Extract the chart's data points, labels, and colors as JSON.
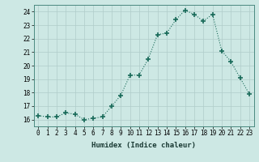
{
  "x": [
    0,
    1,
    2,
    3,
    4,
    5,
    6,
    7,
    8,
    9,
    10,
    11,
    12,
    13,
    14,
    15,
    16,
    17,
    18,
    19,
    20,
    21,
    22,
    23
  ],
  "y": [
    16.3,
    16.2,
    16.2,
    16.5,
    16.4,
    16.0,
    16.1,
    16.2,
    17.0,
    17.8,
    19.3,
    19.3,
    20.5,
    22.3,
    22.4,
    23.4,
    24.1,
    23.8,
    23.3,
    23.8,
    21.1,
    20.3,
    19.1,
    17.9
  ],
  "xlabel": "Humidex (Indice chaleur)",
  "ylim": [
    15.5,
    24.5
  ],
  "xlim": [
    -0.5,
    23.5
  ],
  "yticks": [
    16,
    17,
    18,
    19,
    20,
    21,
    22,
    23,
    24
  ],
  "xticks": [
    0,
    1,
    2,
    3,
    4,
    5,
    6,
    7,
    8,
    9,
    10,
    11,
    12,
    13,
    14,
    15,
    16,
    17,
    18,
    19,
    20,
    21,
    22,
    23
  ],
  "line_color": "#1a6b5a",
  "marker_color": "#1a6b5a",
  "bg_color": "#cde8e4",
  "grid_color": "#b0ccca",
  "xlabel_fontsize": 6.5,
  "tick_fontsize": 5.5
}
